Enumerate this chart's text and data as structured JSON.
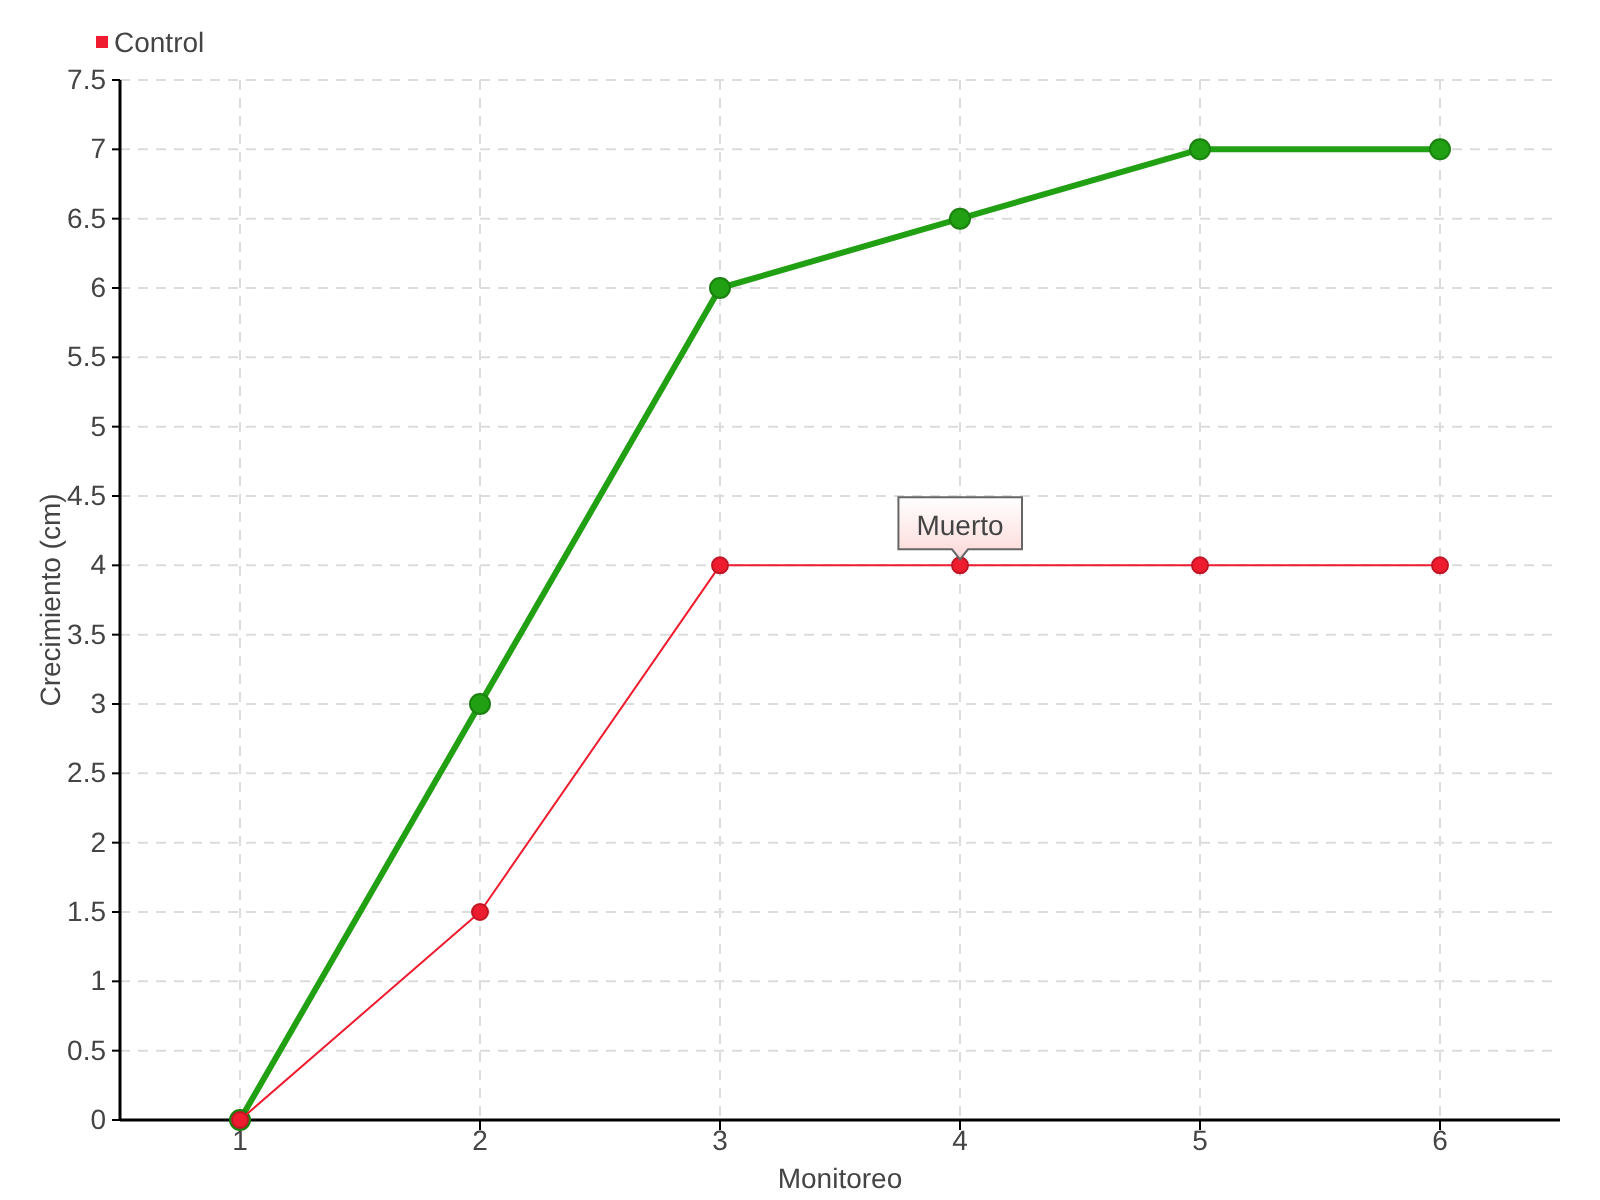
{
  "chart_data": {
    "type": "line",
    "xlabel": "Monitoreo",
    "ylabel": "Crecimiento (cm)",
    "x": [
      1,
      2,
      3,
      4,
      5,
      6
    ],
    "xlim": [
      0.5,
      6.5
    ],
    "xticks": [
      1,
      2,
      3,
      4,
      5,
      6
    ],
    "ylim": [
      0,
      7.5
    ],
    "yticks": [
      0,
      0.5,
      1,
      1.5,
      2,
      2.5,
      3,
      3.5,
      4,
      4.5,
      5,
      5.5,
      6,
      6.5,
      7,
      7.5
    ],
    "series": [
      {
        "color": "#22a014",
        "values": [
          0,
          3,
          6,
          6.5,
          7,
          7
        ]
      },
      {
        "name": "Control",
        "color": "#ee1c2e",
        "values": [
          0,
          1.5,
          4,
          4,
          4,
          4
        ]
      }
    ],
    "annotations": [
      {
        "text": "Muerto",
        "x": 4,
        "y": 4
      }
    ],
    "grid": true,
    "legend": "top left",
    "marker": "circle",
    "line_style": "solid"
  }
}
